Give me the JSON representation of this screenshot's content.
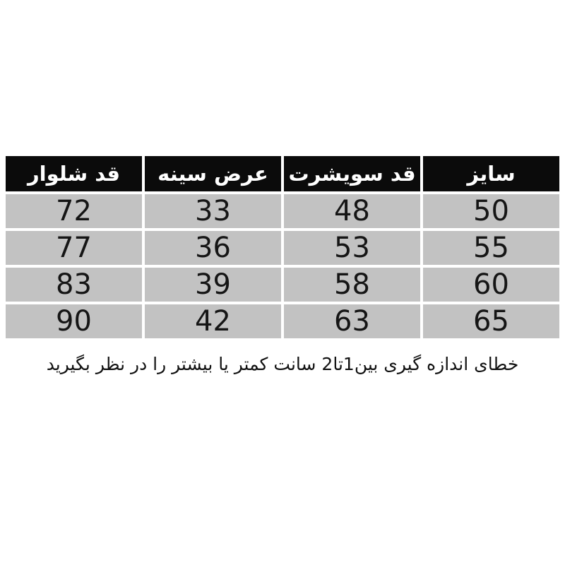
{
  "colors": {
    "page_bg": "#ffffff",
    "header_bg": "#0b0b0b",
    "header_text": "#ffffff",
    "cell_bg": "#c2c2c2",
    "cell_text": "#151515"
  },
  "table": {
    "columns": [
      "سایز",
      "قد سویشرت",
      "عرض سینه",
      "قد شلوار"
    ],
    "rows": [
      [
        "50",
        "48",
        "33",
        "72"
      ],
      [
        "55",
        "53",
        "36",
        "77"
      ],
      [
        "60",
        "58",
        "39",
        "83"
      ],
      [
        "65",
        "63",
        "42",
        "90"
      ]
    ]
  },
  "footnote": "خطای اندازه گیری بین1تا2 سانت کمتر یا بیشتر را در نظر بگیرید",
  "chart_data": {
    "type": "table",
    "title": "",
    "direction": "rtl",
    "columns": [
      "سایز",
      "قد سویشرت",
      "عرض سینه",
      "قد شلوار"
    ],
    "rows": [
      [
        50,
        48,
        33,
        72
      ],
      [
        55,
        53,
        36,
        77
      ],
      [
        60,
        58,
        39,
        83
      ],
      [
        65,
        63,
        42,
        90
      ]
    ],
    "note": "خطای اندازه گیری بین1تا2 سانت کمتر یا بیشتر را در نظر بگیرید",
    "layout_hints": {
      "header_style": "black background, white bold text",
      "body_style": "gray cells, black numerals",
      "note_position": "centered below table"
    }
  }
}
